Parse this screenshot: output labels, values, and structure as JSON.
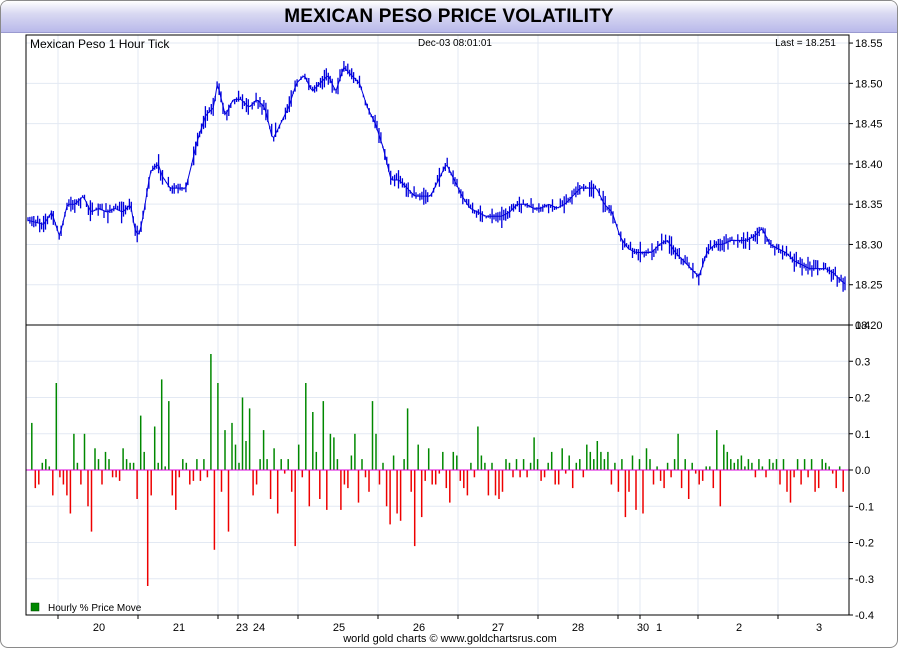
{
  "title": "MEXICAN PESO PRICE VOLATILITY",
  "footer": "world gold charts © www.goldchartsrus.com",
  "chart_data": [
    {
      "type": "line",
      "title": "Mexican Peso 1 Hour Tick",
      "timestamp": "Dec-03  08:01:01",
      "last_label": "Last = 18.251",
      "ylim": [
        18.2,
        18.56
      ],
      "yticks": [
        "18.55",
        "18.50",
        "18.45",
        "18.40",
        "18.35",
        "18.30",
        "18.25",
        "18.20"
      ],
      "xticks": [
        "20",
        "21",
        "23",
        "24",
        "25",
        "26",
        "27",
        "28",
        "30",
        "1",
        "2",
        "3"
      ],
      "grid": true,
      "color": "#0000dd",
      "waypoints": [
        [
          0,
          18.33
        ],
        [
          4,
          18.325
        ],
        [
          6,
          18.34
        ],
        [
          8,
          18.31
        ],
        [
          10,
          18.35
        ],
        [
          12,
          18.35
        ],
        [
          14,
          18.36
        ],
        [
          16,
          18.34
        ],
        [
          18,
          18.345
        ],
        [
          20,
          18.34
        ],
        [
          22,
          18.345
        ],
        [
          24,
          18.34
        ],
        [
          26,
          18.35
        ],
        [
          27,
          18.32
        ],
        [
          28,
          18.31
        ],
        [
          29,
          18.33
        ],
        [
          31,
          18.39
        ],
        [
          33,
          18.4
        ],
        [
          34,
          18.385
        ],
        [
          36,
          18.37
        ],
        [
          38,
          18.37
        ],
        [
          40,
          18.37
        ],
        [
          41,
          18.39
        ],
        [
          43,
          18.43
        ],
        [
          45,
          18.46
        ],
        [
          47,
          18.47
        ],
        [
          48,
          18.5
        ],
        [
          50,
          18.46
        ],
        [
          52,
          18.48
        ],
        [
          54,
          18.48
        ],
        [
          56,
          18.47
        ],
        [
          58,
          18.48
        ],
        [
          60,
          18.47
        ],
        [
          62,
          18.43
        ],
        [
          64,
          18.45
        ],
        [
          66,
          18.47
        ],
        [
          68,
          18.5
        ],
        [
          70,
          18.51
        ],
        [
          72,
          18.49
        ],
        [
          74,
          18.5
        ],
        [
          76,
          18.51
        ],
        [
          78,
          18.49
        ],
        [
          80,
          18.52
        ],
        [
          82,
          18.51
        ],
        [
          84,
          18.5
        ],
        [
          86,
          18.47
        ],
        [
          88,
          18.45
        ],
        [
          90,
          18.42
        ],
        [
          92,
          18.38
        ],
        [
          94,
          18.38
        ],
        [
          96,
          18.37
        ],
        [
          98,
          18.36
        ],
        [
          100,
          18.36
        ],
        [
          102,
          18.36
        ],
        [
          104,
          18.38
        ],
        [
          106,
          18.4
        ],
        [
          108,
          18.38
        ],
        [
          110,
          18.36
        ],
        [
          112,
          18.345
        ],
        [
          114,
          18.34
        ],
        [
          116,
          18.335
        ],
        [
          118,
          18.335
        ],
        [
          120,
          18.335
        ],
        [
          122,
          18.34
        ],
        [
          124,
          18.35
        ],
        [
          126,
          18.35
        ],
        [
          128,
          18.345
        ],
        [
          130,
          18.345
        ],
        [
          132,
          18.35
        ],
        [
          134,
          18.345
        ],
        [
          136,
          18.35
        ],
        [
          138,
          18.36
        ],
        [
          140,
          18.37
        ],
        [
          142,
          18.37
        ],
        [
          144,
          18.37
        ],
        [
          146,
          18.35
        ],
        [
          148,
          18.34
        ],
        [
          150,
          18.31
        ],
        [
          152,
          18.295
        ],
        [
          154,
          18.29
        ],
        [
          156,
          18.29
        ],
        [
          158,
          18.29
        ],
        [
          160,
          18.3
        ],
        [
          162,
          18.305
        ],
        [
          164,
          18.29
        ],
        [
          166,
          18.28
        ],
        [
          168,
          18.27
        ],
        [
          170,
          18.26
        ],
        [
          172,
          18.29
        ],
        [
          174,
          18.3
        ],
        [
          176,
          18.3
        ],
        [
          178,
          18.305
        ],
        [
          180,
          18.305
        ],
        [
          182,
          18.305
        ],
        [
          184,
          18.31
        ],
        [
          186,
          18.32
        ],
        [
          188,
          18.3
        ],
        [
          190,
          18.295
        ],
        [
          192,
          18.29
        ],
        [
          194,
          18.28
        ],
        [
          196,
          18.275
        ],
        [
          198,
          18.27
        ],
        [
          200,
          18.27
        ],
        [
          202,
          18.27
        ],
        [
          204,
          18.265
        ],
        [
          206,
          18.255
        ],
        [
          207,
          18.251
        ]
      ]
    },
    {
      "type": "bar",
      "title": "Hourly % Price Move",
      "ylim": [
        -0.4,
        0.4
      ],
      "yticks": [
        "0.4",
        "0.3",
        "0.2",
        "0.1",
        "0.0",
        "-0.1",
        "-0.2",
        "-0.3",
        "-0.4"
      ],
      "positive_color": "#008800",
      "negative_color": "#ee0000",
      "zero_line_color": "#dd00dd",
      "values": [
        0.13,
        -0.05,
        -0.04,
        0.02,
        0.03,
        0.01,
        -0.07,
        0.24,
        -0.02,
        -0.04,
        -0.07,
        -0.12,
        0.1,
        0.02,
        -0.04,
        0.1,
        -0.1,
        -0.17,
        0.06,
        0.03,
        -0.04,
        0.05,
        0.03,
        -0.02,
        -0.02,
        -0.03,
        0.06,
        0.03,
        0.02,
        0.02,
        -0.08,
        0.15,
        0.05,
        -0.32,
        -0.07,
        0.12,
        0.02,
        0.25,
        0.01,
        0.19,
        -0.07,
        -0.11,
        -0.02,
        0.03,
        0.02,
        -0.04,
        -0.03,
        0.03,
        -0.03,
        0.03,
        -0.02,
        0.32,
        -0.22,
        0.24,
        -0.06,
        0.11,
        -0.17,
        0.13,
        0.07,
        0.02,
        0.2,
        0.08,
        0.17,
        -0.07,
        -0.04,
        0.03,
        0.11,
        0.03,
        -0.08,
        0.06,
        -0.12,
        0.03,
        -0.01,
        0.03,
        -0.06,
        -0.21,
        0.07,
        -0.02,
        0.24,
        -0.1,
        0.16,
        0.05,
        -0.08,
        0.19,
        -0.11,
        0.1,
        0.09,
        0.03,
        -0.11,
        -0.04,
        -0.05,
        0.04,
        0.1,
        -0.09,
        0.03,
        -0.02,
        -0.06,
        0.19,
        0.1,
        -0.04,
        0.02,
        -0.1,
        -0.15,
        0.04,
        -0.12,
        -0.14,
        0.03,
        0.17,
        -0.06,
        -0.21,
        0.07,
        -0.13,
        -0.03,
        0.06,
        -0.04,
        -0.04,
        -0.01,
        0.05,
        -0.05,
        -0.09,
        0.05,
        0.04,
        -0.03,
        -0.05,
        -0.07,
        0.02,
        -0.02,
        0.12,
        0.04,
        0.02,
        -0.07,
        0.02,
        -0.07,
        -0.08,
        -0.06,
        0.03,
        0.02,
        -0.02,
        0.03,
        -0.02,
        0.03,
        -0.02,
        0.02,
        0.09,
        0.03,
        -0.03,
        -0.02,
        0.02,
        0.05,
        -0.04,
        -0.04,
        0.06,
        -0.01,
        0.04,
        -0.05,
        0.02,
        0.03,
        -0.02,
        0.07,
        0.05,
        0.03,
        0.08,
        0.05,
        0.03,
        0.05,
        -0.04,
        0.02,
        -0.06,
        0.03,
        -0.13,
        -0.06,
        0.04,
        -0.11,
        0.03,
        -0.12,
        0.06,
        0.03,
        -0.04,
        0.01,
        -0.03,
        -0.05,
        0.02,
        -0.02,
        0.03,
        0.1,
        -0.05,
        0.03,
        -0.08,
        0.02,
        -0.01,
        -0.04,
        -0.03,
        0.01,
        0.01,
        -0.05,
        0.11,
        -0.1,
        0.07,
        0.05,
        0.03,
        0.02,
        0.03,
        0.04,
        0.01,
        0.03,
        0.02,
        -0.02,
        0.03,
        0.01,
        -0.02,
        0.03,
        0.02,
        0.03,
        -0.04,
        0.03,
        -0.06,
        -0.09,
        -0.02,
        0.03,
        -0.04,
        0.03,
        -0.02,
        0.03,
        -0.06,
        -0.05,
        0.03,
        0.02,
        0.01,
        -0.01,
        -0.05,
        0.01,
        -0.06
      ]
    }
  ]
}
